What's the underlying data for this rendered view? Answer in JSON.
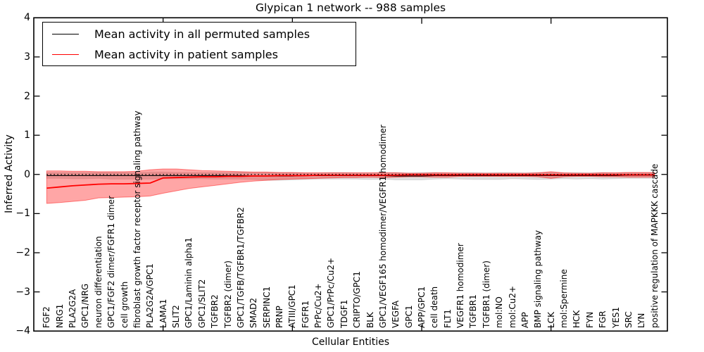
{
  "title": "Glypican 1 network -- 988 samples",
  "x_axis": {
    "label": "Cellular Entities"
  },
  "y_axis": {
    "label": "Inferred Activity",
    "range": [
      -4,
      4
    ],
    "ticks": [
      {
        "value": 4,
        "label": "4"
      },
      {
        "value": 3,
        "label": "3"
      },
      {
        "value": 2,
        "label": "2"
      },
      {
        "value": 1,
        "label": "1"
      },
      {
        "value": 0,
        "label": "0"
      },
      {
        "value": -1,
        "label": "−1"
      },
      {
        "value": -2,
        "label": "−2"
      },
      {
        "value": -3,
        "label": "−3"
      },
      {
        "value": -4,
        "label": "−4"
      }
    ]
  },
  "legend": {
    "position": "upper left",
    "items": [
      {
        "label": "Mean activity in all permuted samples",
        "color": "#000000"
      },
      {
        "label": "Mean activity in patient samples",
        "color": "#ff0000"
      }
    ]
  },
  "chart_data": {
    "type": "line",
    "title": "Glypican 1 network -- 988 samples",
    "xlabel": "Cellular Entities",
    "ylabel": "Inferred Activity",
    "ylim": [
      -4,
      4
    ],
    "grid": false,
    "legend_position": "upper left",
    "x_major_ticks": [
      10,
      20,
      30,
      40
    ],
    "zero_reference_line": {
      "value": 0,
      "color": "#000000",
      "style": "dotted"
    },
    "categories": [
      "FGF2",
      "NRG1",
      "PLA2G2A",
      "GPC1/NRG",
      "neuron differentiation",
      "GPC1/FGF2 dimer/FGFR1 dimer",
      "cell growth",
      "fibroblast growth factor receptor signaling pathway",
      "PLA2G2A/GPC1",
      "LAMA1",
      "SLIT2",
      "GPC1/Laminin alpha1",
      "GPC1/SLIT2",
      "TGFBR2",
      "TGFBR2 (dimer)",
      "GPC1/TGFB/TGFBR1/TGFBR2",
      "SMAD2",
      "SERPINC1",
      "PRNP",
      "ATIII/GPC1",
      "FGFR1",
      "PrPc/Cu2+",
      "GPC1/PrPc/Cu2+",
      "TDGF1",
      "CRIPTO/GPC1",
      "BLK",
      "GPC1/VEGF165 homodimer/VEGFR1 homodimer",
      "VEGFA",
      "GPC1",
      "APP/GPC1",
      "cell death",
      "FLT1",
      "VEGFR1 homodimer",
      "TGFBR1",
      "TGFBR1 (dimer)",
      "mol:NO",
      "mol:Cu2+",
      "APP",
      "BMP signaling pathway",
      "LCK",
      "mol:Spermine",
      "HCK",
      "FYN",
      "FGR",
      "YES1",
      "SRC",
      "LYN",
      "positive regulation of MAPKKK cascade"
    ],
    "series": [
      {
        "name": "Mean activity in all permuted samples",
        "color": "#000000",
        "width": 1.2,
        "values": [
          -0.03,
          -0.03,
          -0.03,
          -0.03,
          -0.03,
          -0.03,
          -0.03,
          -0.03,
          -0.03,
          -0.03,
          -0.03,
          -0.03,
          -0.03,
          -0.03,
          -0.03,
          -0.03,
          -0.04,
          -0.04,
          -0.04,
          -0.04,
          -0.03,
          -0.03,
          -0.03,
          -0.03,
          -0.03,
          -0.03,
          -0.03,
          -0.04,
          -0.04,
          -0.04,
          -0.03,
          -0.03,
          -0.03,
          -0.03,
          -0.03,
          -0.03,
          -0.03,
          -0.03,
          -0.03,
          -0.03,
          -0.03,
          -0.03,
          -0.03,
          -0.03,
          -0.03,
          -0.02,
          -0.02,
          -0.02
        ]
      },
      {
        "name": "Mean activity in patient samples",
        "color": "#ff0000",
        "width": 1.8,
        "values": [
          -0.35,
          -0.32,
          -0.29,
          -0.27,
          -0.25,
          -0.24,
          -0.24,
          -0.23,
          -0.22,
          -0.09,
          -0.08,
          -0.07,
          -0.06,
          -0.06,
          -0.05,
          -0.05,
          -0.04,
          -0.04,
          -0.03,
          -0.03,
          -0.03,
          -0.02,
          -0.02,
          -0.02,
          -0.02,
          -0.02,
          -0.02,
          -0.02,
          -0.01,
          -0.01,
          -0.01,
          -0.01,
          -0.01,
          -0.01,
          -0.01,
          -0.01,
          -0.01,
          -0.01,
          -0.01,
          -0.01,
          -0.01,
          -0.01,
          -0.01,
          -0.01,
          -0.01,
          -0.01,
          -0.01,
          -0.01
        ]
      }
    ],
    "bands": [
      {
        "name": "Permuted samples activity range",
        "fill": "rgba(0,0,0,0.13)",
        "edge": "rgba(0,0,0,0.10)",
        "upper": [
          0.05,
          0.05,
          0.05,
          0.05,
          0.05,
          0.05,
          0.05,
          0.05,
          0.06,
          0.06,
          0.05,
          0.05,
          0.05,
          0.05,
          0.05,
          0.06,
          0.05,
          0.05,
          0.05,
          0.05,
          0.04,
          0.04,
          0.05,
          0.05,
          0.04,
          0.04,
          0.05,
          0.05,
          0.04,
          0.05,
          0.05,
          0.04,
          0.05,
          0.05,
          0.04,
          0.05,
          0.05,
          0.04,
          0.05,
          0.05,
          0.04,
          0.05,
          0.04,
          0.05,
          0.04,
          0.05,
          0.05,
          0.05
        ],
        "lower": [
          -0.1,
          -0.1,
          -0.11,
          -0.11,
          -0.1,
          -0.12,
          -0.12,
          -0.12,
          -0.12,
          -0.11,
          -0.11,
          -0.11,
          -0.11,
          -0.12,
          -0.12,
          -0.12,
          -0.13,
          -0.15,
          -0.15,
          -0.14,
          -0.13,
          -0.12,
          -0.12,
          -0.12,
          -0.12,
          -0.13,
          -0.12,
          -0.14,
          -0.14,
          -0.14,
          -0.12,
          -0.11,
          -0.12,
          -0.13,
          -0.13,
          -0.13,
          -0.11,
          -0.12,
          -0.13,
          -0.12,
          -0.11,
          -0.12,
          -0.11,
          -0.12,
          -0.11,
          -0.1,
          -0.1,
          -0.1
        ]
      },
      {
        "name": "Patient samples activity range",
        "fill": "rgba(255,0,0,0.35)",
        "edge": "rgba(255,0,0,0.45)",
        "upper": [
          0.09,
          0.09,
          0.08,
          0.08,
          0.07,
          0.07,
          0.07,
          0.08,
          0.12,
          0.14,
          0.14,
          0.12,
          0.1,
          0.09,
          0.08,
          0.07,
          0.06,
          0.06,
          0.05,
          0.05,
          0.04,
          0.04,
          0.04,
          0.04,
          0.04,
          0.04,
          0.04,
          0.04,
          0.03,
          0.03,
          0.04,
          0.04,
          0.03,
          0.03,
          0.03,
          0.03,
          0.03,
          0.03,
          0.04,
          0.07,
          0.04,
          0.03,
          0.03,
          0.04,
          0.04,
          0.05,
          0.05,
          0.05
        ],
        "lower": [
          -0.74,
          -0.72,
          -0.69,
          -0.66,
          -0.6,
          -0.59,
          -0.58,
          -0.57,
          -0.55,
          -0.48,
          -0.42,
          -0.36,
          -0.32,
          -0.28,
          -0.24,
          -0.2,
          -0.17,
          -0.15,
          -0.13,
          -0.12,
          -0.11,
          -0.1,
          -0.09,
          -0.08,
          -0.08,
          -0.07,
          -0.08,
          -0.07,
          -0.06,
          -0.06,
          -0.07,
          -0.07,
          -0.05,
          -0.05,
          -0.05,
          -0.05,
          -0.05,
          -0.05,
          -0.06,
          -0.1,
          -0.06,
          -0.05,
          -0.05,
          -0.06,
          -0.06,
          -0.07,
          -0.07,
          -0.07
        ]
      }
    ]
  }
}
